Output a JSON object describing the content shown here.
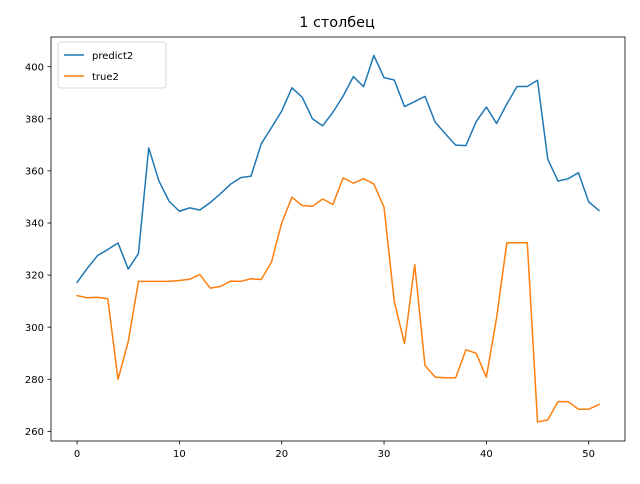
{
  "chart_data": {
    "type": "line",
    "title": "1 столбец",
    "xlabel": "",
    "ylabel": "",
    "xlim": [
      -2.55,
      53.55
    ],
    "ylim": [
      256.3,
      411.4
    ],
    "xticks": [
      0,
      10,
      20,
      30,
      40,
      50
    ],
    "yticks": [
      260,
      280,
      300,
      320,
      340,
      360,
      380,
      400
    ],
    "x": [
      0,
      1,
      2,
      3,
      4,
      5,
      6,
      7,
      8,
      9,
      10,
      11,
      12,
      13,
      14,
      15,
      16,
      17,
      18,
      19,
      20,
      21,
      22,
      23,
      24,
      25,
      26,
      27,
      28,
      29,
      30,
      31,
      32,
      33,
      34,
      35,
      36,
      37,
      38,
      39,
      40,
      41,
      42,
      43,
      44,
      45,
      46,
      47,
      48,
      49,
      50,
      51
    ],
    "grid": false,
    "legend_position": "upper left",
    "series": [
      {
        "name": "predict2",
        "color": "#1f77b4",
        "values": [
          317.2,
          322.6,
          327.5,
          329.8,
          332.3,
          322.3,
          328.3,
          368.8,
          356.1,
          348.3,
          344.5,
          345.8,
          345.0,
          347.8,
          351.2,
          354.9,
          357.4,
          358.0,
          370.4,
          376.6,
          383.0,
          391.9,
          388.3,
          380.0,
          377.3,
          382.5,
          388.7,
          396.2,
          392.3,
          404.3,
          395.8,
          394.9,
          384.7,
          386.6,
          388.6,
          378.7,
          374.2,
          369.9,
          369.7,
          378.9,
          384.5,
          378.2,
          385.7,
          392.4,
          392.4,
          394.8,
          364.5,
          356.1,
          357.0,
          359.3,
          348.1,
          344.8
        ]
      },
      {
        "name": "true2",
        "color": "#ff7f0e",
        "values": [
          312.1,
          311.3,
          311.5,
          310.9,
          280.0,
          294.5,
          317.6,
          317.6,
          317.6,
          317.6,
          317.9,
          318.4,
          320.2,
          315.0,
          315.6,
          317.7,
          317.6,
          318.6,
          318.3,
          325.0,
          340.0,
          349.9,
          346.7,
          346.4,
          349.2,
          347.1,
          357.3,
          355.3,
          357.0,
          355.0,
          346.0,
          309.8,
          293.7,
          324.0,
          285.3,
          280.8,
          280.6,
          280.6,
          291.3,
          290.0,
          280.8,
          303.6,
          332.4,
          332.4,
          332.4,
          263.6,
          264.4,
          271.4,
          271.4,
          268.5,
          268.5,
          270.3
        ]
      }
    ]
  }
}
